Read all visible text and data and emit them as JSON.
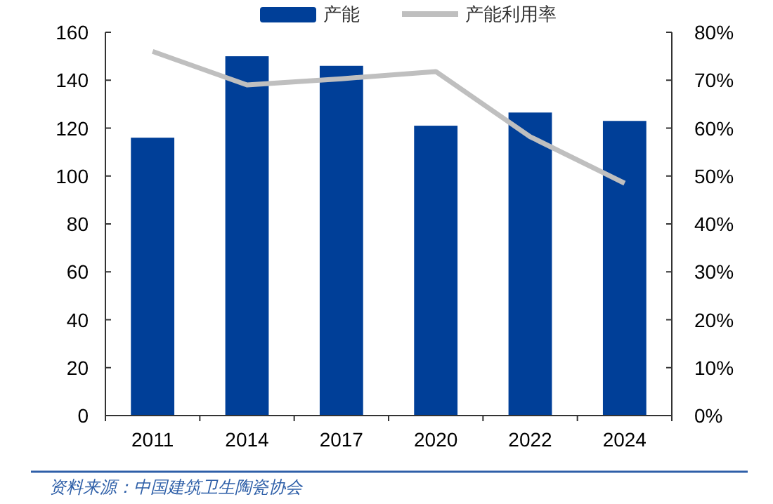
{
  "chart_data": {
    "type": "bar",
    "categories": [
      "2011",
      "2014",
      "2017",
      "2020",
      "2022",
      "2024"
    ],
    "series": [
      {
        "name": "产能",
        "color": "#003f98",
        "values": [
          116,
          150,
          146,
          121,
          126.5,
          123
        ]
      },
      {
        "name": "产能利用率",
        "type": "line",
        "axis": "y2",
        "color": "#bfbfbf",
        "values": [
          76,
          69,
          70.3,
          71.8,
          58.2,
          48.5
        ]
      }
    ],
    "ylim": [
      0,
      160
    ],
    "yticks": [
      0,
      20,
      40,
      60,
      80,
      100,
      120,
      140,
      160
    ],
    "y2lim": [
      0,
      80
    ],
    "y2ticks": [
      {
        "value": 0,
        "label": "0%"
      },
      {
        "value": 10,
        "label": "10%"
      },
      {
        "value": 20,
        "label": "20%"
      },
      {
        "value": 30,
        "label": "30%"
      },
      {
        "value": 40,
        "label": "40%"
      },
      {
        "value": 50,
        "label": "50%"
      },
      {
        "value": 60,
        "label": "60%"
      },
      {
        "value": 70,
        "label": "70%"
      },
      {
        "value": 80,
        "label": "80%"
      }
    ],
    "grid": false,
    "legend": "top",
    "annotations": [
      "资料来源：中国建筑卫生陶瓷协会"
    ]
  }
}
